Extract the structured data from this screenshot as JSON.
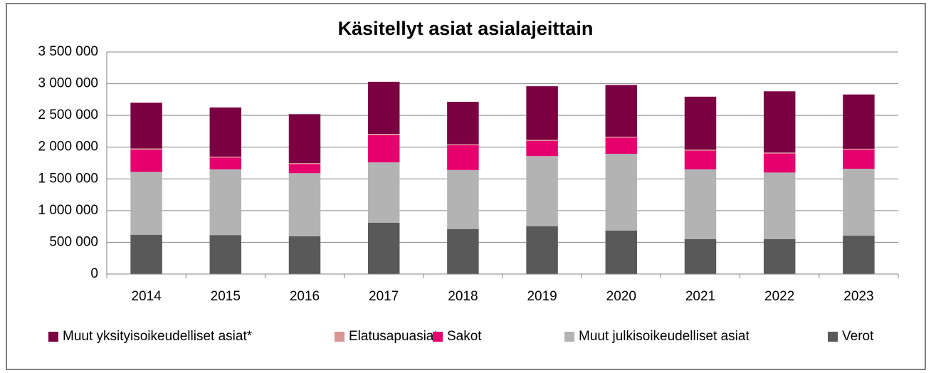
{
  "chart_data": {
    "type": "bar",
    "stacked": true,
    "title": "Käsitellyt asiat asialajeittain",
    "categories": [
      "2014",
      "2015",
      "2016",
      "2017",
      "2018",
      "2019",
      "2020",
      "2021",
      "2022",
      "2023"
    ],
    "series": [
      {
        "name": "Muut yksityisoikeudelliset asiat*",
        "color": "#7b0041",
        "values": [
          720000,
          775000,
          770000,
          820000,
          670000,
          845000,
          815000,
          835000,
          965000,
          855000
        ]
      },
      {
        "name": "Elatusapuasiat",
        "color": "#d99594",
        "values": [
          20000,
          15000,
          15000,
          20000,
          15000,
          15000,
          15000,
          15000,
          15000,
          15000
        ]
      },
      {
        "name": "Sakot",
        "color": "#e6006e",
        "values": [
          350000,
          185000,
          145000,
          430000,
          390000,
          240000,
          255000,
          295000,
          300000,
          300000
        ]
      },
      {
        "name": "Muut julkisoikeudelliset asiat",
        "color": "#b3b3b3",
        "values": [
          990000,
          1035000,
          995000,
          950000,
          930000,
          1105000,
          1210000,
          1100000,
          1050000,
          1055000
        ]
      },
      {
        "name": "Verot",
        "color": "#595959",
        "values": [
          620000,
          615000,
          595000,
          810000,
          710000,
          755000,
          685000,
          550000,
          550000,
          605000
        ]
      }
    ],
    "ylim": [
      0,
      3500000
    ],
    "yticks": [
      0,
      {
        "value": 500000,
        "label": "500 000"
      },
      {
        "value": 1000000,
        "label": "1 000 000"
      },
      {
        "value": 1500000,
        "label": "1 500 000"
      },
      {
        "value": 2000000,
        "label": "2 000 000"
      },
      {
        "value": 2500000,
        "label": "2 500 000"
      },
      {
        "value": 3000000,
        "label": "3 000 000"
      },
      {
        "value": 3500000,
        "label": "3 500 000"
      }
    ],
    "grid": true,
    "legend": "bottom"
  }
}
